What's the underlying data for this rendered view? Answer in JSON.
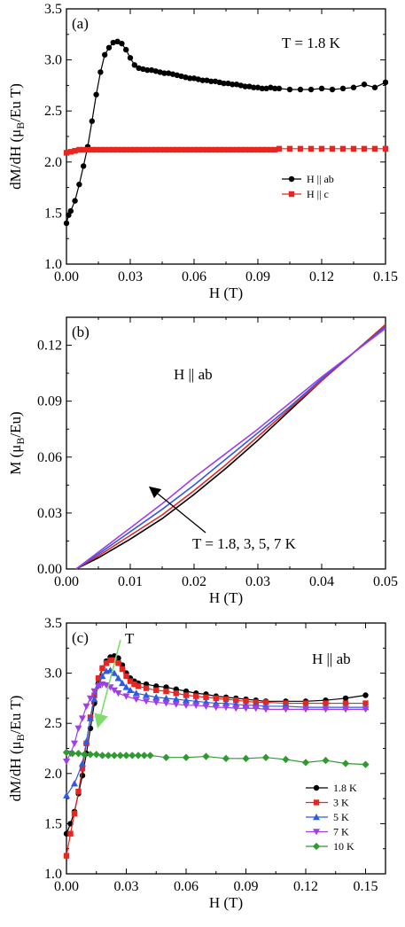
{
  "chart_data": [
    {
      "type": "scatter",
      "panel_label": "(a)",
      "annotation": "T = 1.8 K",
      "xlabel": "H (T)",
      "ylabel": "dM/dH (μB/Eu T)",
      "ylabel_main": "dM/dH (μ",
      "ylabel_sub": "B",
      "ylabel_tail": "/Eu T)",
      "xlim": [
        0,
        0.15
      ],
      "ylim": [
        1.0,
        3.5
      ],
      "xticks": [
        0,
        0.03,
        0.06,
        0.09,
        0.12,
        0.15
      ],
      "xtick_labels": [
        "0.00",
        "0.03",
        "0.06",
        "0.09",
        "0.12",
        "0.15"
      ],
      "yticks": [
        1.0,
        1.5,
        2.0,
        2.5,
        3.0,
        3.5
      ],
      "ytick_labels": [
        "1.0",
        "1.5",
        "2.0",
        "2.5",
        "3.0",
        "3.5"
      ],
      "legend_position": "right",
      "series": [
        {
          "name": "H || ab",
          "color": "#000000",
          "marker": "circle",
          "x": [
            0.0,
            0.001,
            0.002,
            0.004,
            0.006,
            0.008,
            0.01,
            0.012,
            0.014,
            0.016,
            0.018,
            0.02,
            0.022,
            0.024,
            0.026,
            0.028,
            0.03,
            0.032,
            0.034,
            0.036,
            0.038,
            0.04,
            0.042,
            0.044,
            0.046,
            0.048,
            0.05,
            0.052,
            0.054,
            0.056,
            0.058,
            0.06,
            0.062,
            0.064,
            0.066,
            0.068,
            0.07,
            0.072,
            0.074,
            0.076,
            0.078,
            0.08,
            0.082,
            0.084,
            0.086,
            0.088,
            0.09,
            0.092,
            0.094,
            0.096,
            0.098,
            0.1,
            0.105,
            0.11,
            0.115,
            0.12,
            0.125,
            0.13,
            0.135,
            0.14,
            0.145,
            0.15
          ],
          "y": [
            1.4,
            1.48,
            1.52,
            1.62,
            1.78,
            1.96,
            2.15,
            2.4,
            2.66,
            2.88,
            3.05,
            3.12,
            3.17,
            3.18,
            3.16,
            3.1,
            3.02,
            2.95,
            2.92,
            2.91,
            2.9,
            2.9,
            2.89,
            2.88,
            2.87,
            2.87,
            2.86,
            2.85,
            2.84,
            2.83,
            2.82,
            2.82,
            2.81,
            2.8,
            2.8,
            2.79,
            2.79,
            2.78,
            2.77,
            2.77,
            2.76,
            2.76,
            2.75,
            2.74,
            2.74,
            2.73,
            2.73,
            2.72,
            2.72,
            2.73,
            2.72,
            2.72,
            2.71,
            2.71,
            2.71,
            2.72,
            2.71,
            2.72,
            2.73,
            2.76,
            2.73,
            2.78
          ]
        },
        {
          "name": "H || c",
          "color": "#e8261f",
          "marker": "square",
          "x": [
            0.0,
            0.002,
            0.004,
            0.006,
            0.008,
            0.01,
            0.012,
            0.014,
            0.016,
            0.018,
            0.02,
            0.022,
            0.024,
            0.026,
            0.028,
            0.03,
            0.032,
            0.034,
            0.036,
            0.038,
            0.04,
            0.042,
            0.044,
            0.046,
            0.048,
            0.05,
            0.052,
            0.054,
            0.056,
            0.058,
            0.06,
            0.062,
            0.064,
            0.066,
            0.068,
            0.07,
            0.072,
            0.074,
            0.076,
            0.078,
            0.08,
            0.082,
            0.084,
            0.086,
            0.088,
            0.09,
            0.092,
            0.094,
            0.096,
            0.098,
            0.1,
            0.105,
            0.11,
            0.115,
            0.12,
            0.125,
            0.13,
            0.135,
            0.14,
            0.145,
            0.15
          ],
          "y": [
            2.09,
            2.1,
            2.11,
            2.12,
            2.12,
            2.12,
            2.12,
            2.12,
            2.12,
            2.12,
            2.12,
            2.12,
            2.12,
            2.12,
            2.12,
            2.12,
            2.12,
            2.12,
            2.12,
            2.12,
            2.12,
            2.12,
            2.12,
            2.12,
            2.12,
            2.12,
            2.12,
            2.12,
            2.12,
            2.12,
            2.12,
            2.12,
            2.12,
            2.12,
            2.12,
            2.12,
            2.12,
            2.12,
            2.12,
            2.12,
            2.12,
            2.12,
            2.12,
            2.12,
            2.12,
            2.12,
            2.12,
            2.12,
            2.12,
            2.12,
            2.13,
            2.13,
            2.13,
            2.13,
            2.13,
            2.13,
            2.13,
            2.13,
            2.13,
            2.13,
            2.13
          ]
        }
      ]
    },
    {
      "type": "line",
      "panel_label": "(b)",
      "annotation": "H || ab",
      "arrow_label": "T = 1.8, 3, 5, 7 K",
      "xlabel": "H (T)",
      "ylabel": "M (μB/Eu)",
      "ylabel_main": "M (μ",
      "ylabel_sub": "B",
      "ylabel_tail": "/Eu)",
      "xlim": [
        0,
        0.05
      ],
      "ylim": [
        0,
        0.135
      ],
      "xticks": [
        0,
        0.01,
        0.02,
        0.03,
        0.04,
        0.05
      ],
      "xtick_labels": [
        "0.00",
        "0.01",
        "0.02",
        "0.03",
        "0.04",
        "0.05"
      ],
      "yticks": [
        0,
        0.03,
        0.06,
        0.09,
        0.12
      ],
      "ytick_labels": [
        "0.00",
        "0.03",
        "0.06",
        "0.09",
        "0.12"
      ],
      "series": [
        {
          "name": "1.8 K",
          "color": "#000000",
          "x": [
            0.0015,
            0.005,
            0.01,
            0.015,
            0.02,
            0.025,
            0.03,
            0.035,
            0.04,
            0.045,
            0.05
          ],
          "y": [
            0.0,
            0.006,
            0.016,
            0.027,
            0.04,
            0.054,
            0.069,
            0.085,
            0.101,
            0.116,
            0.131
          ]
        },
        {
          "name": "3 K",
          "color": "#e8261f",
          "x": [
            0.0015,
            0.005,
            0.01,
            0.015,
            0.02,
            0.025,
            0.03,
            0.035,
            0.04,
            0.045,
            0.05
          ],
          "y": [
            0.0,
            0.007,
            0.018,
            0.029,
            0.042,
            0.056,
            0.071,
            0.086,
            0.101,
            0.116,
            0.131
          ]
        },
        {
          "name": "5 K",
          "color": "#2d5be3",
          "x": [
            0.0015,
            0.005,
            0.01,
            0.015,
            0.02,
            0.025,
            0.03,
            0.035,
            0.04,
            0.045,
            0.05
          ],
          "y": [
            0.0,
            0.008,
            0.02,
            0.032,
            0.045,
            0.059,
            0.073,
            0.087,
            0.102,
            0.116,
            0.13
          ]
        },
        {
          "name": "7 K",
          "color": "#a03de6",
          "x": [
            0.0015,
            0.005,
            0.01,
            0.015,
            0.02,
            0.025,
            0.03,
            0.035,
            0.04,
            0.045,
            0.05
          ],
          "y": [
            0.0,
            0.009,
            0.022,
            0.035,
            0.049,
            0.062,
            0.075,
            0.089,
            0.103,
            0.116,
            0.129
          ]
        }
      ]
    },
    {
      "type": "scatter",
      "panel_label": "(c)",
      "annotation": "H || ab",
      "arrow_label": "T",
      "xlabel": "H (T)",
      "ylabel": "dM/dH (μB/Eu T)",
      "ylabel_main": "dM/dH (μ",
      "ylabel_sub": "B",
      "ylabel_tail": "/Eu T)",
      "xlim": [
        0,
        0.16
      ],
      "ylim": [
        1.0,
        3.5
      ],
      "xticks": [
        0,
        0.03,
        0.06,
        0.09,
        0.12,
        0.15
      ],
      "xtick_labels": [
        "0.00",
        "0.03",
        "0.06",
        "0.09",
        "0.12",
        "0.15"
      ],
      "yticks": [
        1.0,
        1.5,
        2.0,
        2.5,
        3.0,
        3.5
      ],
      "ytick_labels": [
        "1.0",
        "1.5",
        "2.0",
        "2.5",
        "3.0",
        "3.5"
      ],
      "legend_position": "bottom-right",
      "series": [
        {
          "name": "1.8 K",
          "color": "#000000",
          "marker": "circle",
          "x": [
            0.0,
            0.002,
            0.004,
            0.006,
            0.008,
            0.01,
            0.012,
            0.014,
            0.016,
            0.018,
            0.02,
            0.022,
            0.024,
            0.026,
            0.028,
            0.03,
            0.032,
            0.034,
            0.036,
            0.04,
            0.045,
            0.05,
            0.055,
            0.06,
            0.065,
            0.07,
            0.075,
            0.08,
            0.085,
            0.09,
            0.095,
            0.1,
            0.11,
            0.12,
            0.13,
            0.14,
            0.15
          ],
          "y": [
            1.4,
            1.5,
            1.62,
            1.8,
            1.98,
            2.2,
            2.45,
            2.7,
            2.9,
            3.05,
            3.12,
            3.16,
            3.17,
            3.15,
            3.08,
            3.0,
            2.95,
            2.92,
            2.9,
            2.89,
            2.87,
            2.86,
            2.84,
            2.82,
            2.8,
            2.79,
            2.77,
            2.76,
            2.75,
            2.74,
            2.73,
            2.72,
            2.72,
            2.72,
            2.73,
            2.75,
            2.78
          ]
        },
        {
          "name": "3 K",
          "color": "#e8261f",
          "marker": "square",
          "x": [
            0.0,
            0.002,
            0.004,
            0.006,
            0.008,
            0.01,
            0.012,
            0.014,
            0.016,
            0.018,
            0.02,
            0.022,
            0.024,
            0.026,
            0.028,
            0.03,
            0.032,
            0.034,
            0.036,
            0.04,
            0.045,
            0.05,
            0.055,
            0.06,
            0.065,
            0.07,
            0.075,
            0.08,
            0.085,
            0.09,
            0.095,
            0.1,
            0.11,
            0.12,
            0.13,
            0.14,
            0.15
          ],
          "y": [
            1.18,
            1.4,
            1.6,
            1.82,
            2.05,
            2.3,
            2.56,
            2.78,
            2.95,
            3.05,
            3.1,
            3.13,
            3.13,
            3.1,
            3.04,
            2.97,
            2.92,
            2.89,
            2.87,
            2.85,
            2.83,
            2.82,
            2.8,
            2.78,
            2.77,
            2.76,
            2.75,
            2.74,
            2.73,
            2.72,
            2.71,
            2.71,
            2.7,
            2.7,
            2.7,
            2.7,
            2.7
          ]
        },
        {
          "name": "5 K",
          "color": "#2d5be3",
          "marker": "triangle-up",
          "x": [
            0.0,
            0.004,
            0.008,
            0.01,
            0.012,
            0.014,
            0.016,
            0.018,
            0.02,
            0.022,
            0.024,
            0.026,
            0.028,
            0.03,
            0.032,
            0.035,
            0.04,
            0.045,
            0.05,
            0.055,
            0.06,
            0.065,
            0.07,
            0.075,
            0.08,
            0.085,
            0.09,
            0.095,
            0.1,
            0.11,
            0.12,
            0.13,
            0.14,
            0.15
          ],
          "y": [
            1.78,
            1.9,
            2.1,
            2.32,
            2.55,
            2.74,
            2.88,
            2.97,
            3.02,
            3.03,
            3.0,
            2.95,
            2.9,
            2.86,
            2.83,
            2.8,
            2.78,
            2.76,
            2.75,
            2.74,
            2.73,
            2.72,
            2.71,
            2.7,
            2.7,
            2.69,
            2.68,
            2.68,
            2.67,
            2.67,
            2.66,
            2.66,
            2.66,
            2.66
          ]
        },
        {
          "name": "7 K",
          "color": "#a03de6",
          "marker": "triangle-down",
          "x": [
            0.0,
            0.002,
            0.004,
            0.006,
            0.008,
            0.01,
            0.012,
            0.014,
            0.016,
            0.018,
            0.02,
            0.022,
            0.024,
            0.026,
            0.03,
            0.035,
            0.04,
            0.045,
            0.05,
            0.055,
            0.06,
            0.065,
            0.07,
            0.075,
            0.08,
            0.085,
            0.09,
            0.095,
            0.1,
            0.11,
            0.12,
            0.13,
            0.14,
            0.15
          ],
          "y": [
            2.12,
            2.2,
            2.3,
            2.45,
            2.55,
            2.67,
            2.75,
            2.82,
            2.87,
            2.89,
            2.88,
            2.86,
            2.83,
            2.8,
            2.77,
            2.74,
            2.72,
            2.71,
            2.7,
            2.69,
            2.68,
            2.68,
            2.67,
            2.66,
            2.66,
            2.65,
            2.65,
            2.65,
            2.64,
            2.64,
            2.64,
            2.64,
            2.64,
            2.64
          ]
        },
        {
          "name": "10 K",
          "color": "#2f9a2f",
          "marker": "diamond",
          "x": [
            0.0,
            0.003,
            0.006,
            0.009,
            0.012,
            0.015,
            0.018,
            0.021,
            0.024,
            0.027,
            0.03,
            0.033,
            0.036,
            0.039,
            0.042,
            0.05,
            0.06,
            0.07,
            0.08,
            0.09,
            0.1,
            0.11,
            0.12,
            0.13,
            0.14,
            0.15
          ],
          "y": [
            2.21,
            2.2,
            2.2,
            2.19,
            2.19,
            2.19,
            2.18,
            2.18,
            2.18,
            2.18,
            2.18,
            2.18,
            2.18,
            2.18,
            2.18,
            2.16,
            2.16,
            2.17,
            2.15,
            2.15,
            2.16,
            2.14,
            2.11,
            2.13,
            2.1,
            2.09
          ]
        }
      ]
    }
  ]
}
